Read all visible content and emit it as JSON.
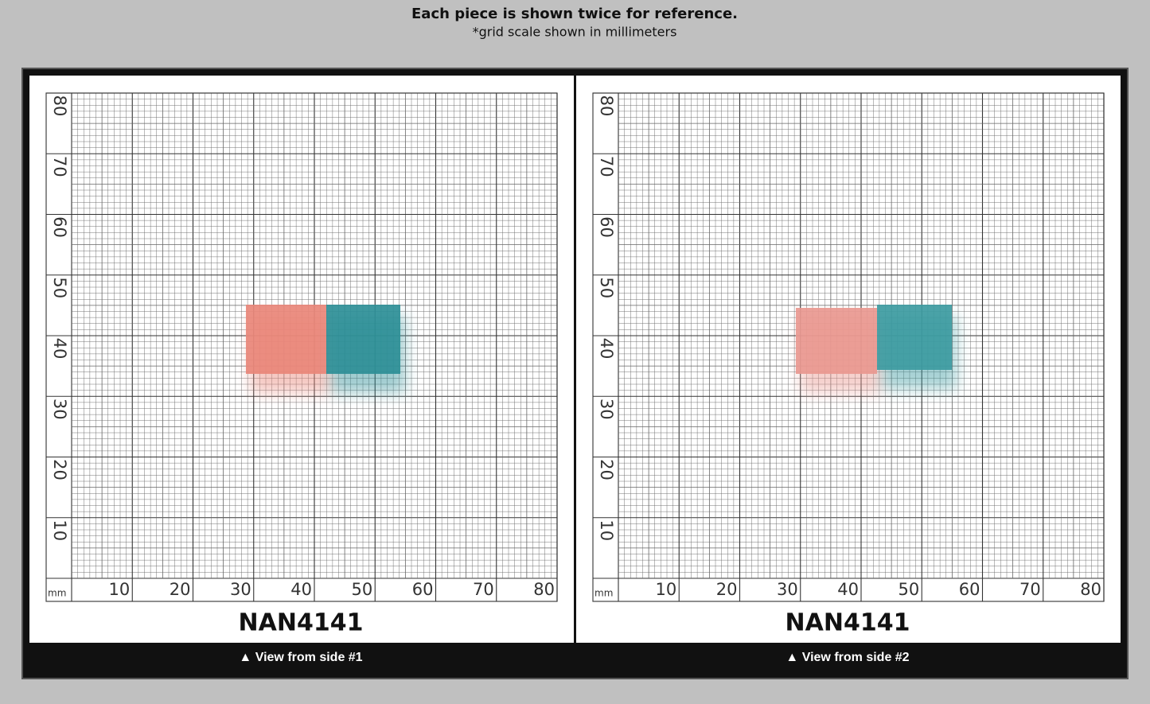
{
  "header": {
    "title": "Each piece is shown twice for reference.",
    "subtitle": "*grid scale shown in millimeters"
  },
  "panels": [
    {
      "label": "NAN4141",
      "caption": "▲ View from side #1",
      "unit": "mm",
      "x_ticks": [
        "10",
        "20",
        "30",
        "40",
        "50",
        "60",
        "70",
        "80"
      ],
      "y_ticks": [
        "10",
        "20",
        "30",
        "40",
        "50",
        "60",
        "70",
        "80"
      ]
    },
    {
      "label": "NAN4141",
      "caption": "▲ View from side #2",
      "unit": "mm",
      "x_ticks": [
        "10",
        "20",
        "30",
        "40",
        "50",
        "60",
        "70",
        "80"
      ],
      "y_ticks": [
        "10",
        "20",
        "30",
        "40",
        "50",
        "60",
        "70",
        "80"
      ]
    }
  ]
}
